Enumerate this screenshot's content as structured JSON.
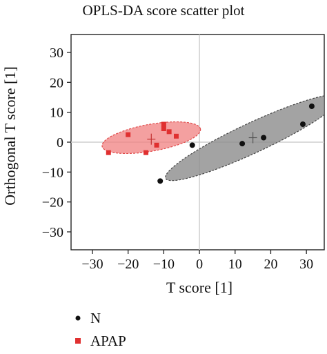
{
  "chart_data": {
    "type": "scatter",
    "title": "OPLS-DA score scatter plot",
    "xlabel": "T score [1]",
    "ylabel": "Orthogonal T score [1]",
    "xlim": [
      -36,
      35
    ],
    "ylim": [
      -36,
      36
    ],
    "xticks": [
      -30,
      -20,
      -10,
      0,
      10,
      20,
      30
    ],
    "yticks": [
      -30,
      -20,
      -10,
      0,
      10,
      20,
      30
    ],
    "xtick_labels": [
      "−30",
      "−20",
      "−10",
      "0",
      "10",
      "20",
      "30"
    ],
    "ytick_labels": [
      "−30",
      "−20",
      "−10",
      "0",
      "10",
      "20",
      "30"
    ],
    "grid": false,
    "zero_lines": true,
    "legend_position": "bottom-left",
    "series": [
      {
        "name": "N",
        "marker": "circle",
        "color": "#111111",
        "ellipse_color": "#8c8c8c",
        "points": [
          {
            "x": -2,
            "y": -1
          },
          {
            "x": -11,
            "y": -13
          },
          {
            "x": 12,
            "y": -0.5
          },
          {
            "x": 18,
            "y": 1.5
          },
          {
            "x": 29,
            "y": 6
          },
          {
            "x": 31.5,
            "y": 12
          }
        ],
        "ellipse": {
          "cx": 15,
          "cy": 1.5,
          "rx": 27,
          "ry": 5,
          "angle_deg": 25
        },
        "center": {
          "x": 15,
          "y": 1.5
        }
      },
      {
        "name": "APAP",
        "marker": "square",
        "color": "#e03030",
        "ellipse_color": "#f08080",
        "points": [
          {
            "x": -25.5,
            "y": -3.5
          },
          {
            "x": -20,
            "y": 2.5
          },
          {
            "x": -15,
            "y": -3.5
          },
          {
            "x": -10,
            "y": 4.5
          },
          {
            "x": -8.5,
            "y": 3.5
          },
          {
            "x": -6.5,
            "y": 2
          },
          {
            "x": -10,
            "y": 6
          },
          {
            "x": -12,
            "y": -1
          }
        ],
        "ellipse": {
          "cx": -13.5,
          "cy": 1.5,
          "rx": 14,
          "ry": 4.5,
          "angle_deg": 10
        },
        "center": {
          "x": -13.5,
          "y": 1
        }
      }
    ]
  }
}
